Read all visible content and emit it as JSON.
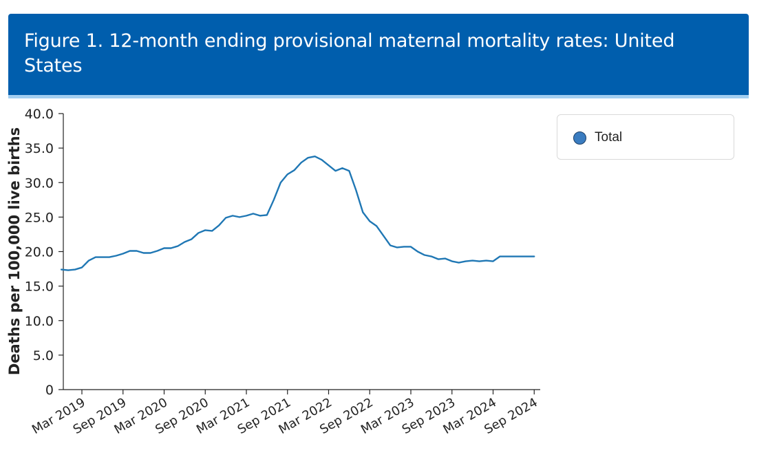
{
  "header": {
    "title": "Figure 1. 12-month ending provisional maternal mortality rates: United States"
  },
  "colors": {
    "header_bg": "#005ead",
    "stripe": "#a3cef1",
    "series": "#1f77b4"
  },
  "legend": {
    "items": [
      {
        "label": "Total",
        "icon": "circle-marker-icon",
        "color": "#3a7cc0"
      }
    ]
  },
  "chart_data": {
    "type": "line",
    "title": "Figure 1. 12-month ending provisional maternal mortality rates: United States",
    "xlabel": "",
    "ylabel": "Deaths per 100,000 live births",
    "ylim": [
      0,
      40
    ],
    "yticks": [
      "0",
      "5.0",
      "10.0",
      "15.0",
      "20.0",
      "25.0",
      "30.0",
      "35.0",
      "40.0"
    ],
    "xticks": [
      "Mar 2019",
      "Sep 2019",
      "Mar 2020",
      "Sep 2020",
      "Mar 2021",
      "Sep 2021",
      "Mar 2022",
      "Sep 2022",
      "Mar 2023",
      "Sep 2023",
      "Mar 2024",
      "Sep 2024"
    ],
    "x_start": "Dec 2018",
    "x_end": "Sep 2024",
    "grid": false,
    "legend_position": "top-right",
    "series": [
      {
        "name": "Total",
        "values": [
          17.4,
          17.3,
          17.4,
          17.7,
          18.7,
          19.2,
          19.2,
          19.2,
          19.4,
          19.7,
          20.1,
          20.1,
          19.8,
          19.8,
          20.1,
          20.5,
          20.5,
          20.8,
          21.4,
          21.8,
          22.7,
          23.1,
          23.0,
          23.8,
          24.9,
          25.2,
          25.0,
          25.2,
          25.5,
          25.2,
          25.3,
          27.5,
          30.0,
          31.2,
          31.8,
          32.9,
          33.6,
          33.8,
          33.3,
          32.5,
          31.7,
          32.1,
          31.7,
          28.9,
          25.7,
          24.4,
          23.7,
          22.3,
          20.9,
          20.6,
          20.7,
          20.7,
          20.0,
          19.5,
          19.3,
          18.9,
          19.0,
          18.6,
          18.4,
          18.6,
          18.7,
          18.6,
          18.7,
          18.6,
          19.3,
          19.3,
          19.3,
          19.3,
          19.3,
          19.3
        ]
      }
    ]
  }
}
